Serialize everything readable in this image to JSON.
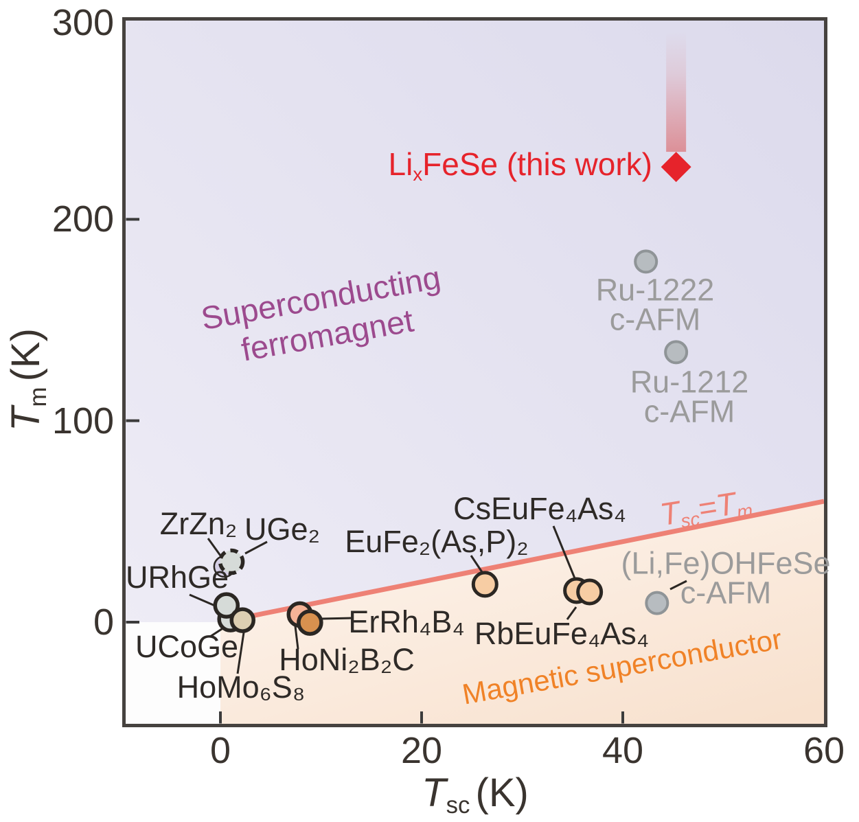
{
  "palette": {
    "lavender_bg_top": "#dcdaec",
    "lavender_bg_bottom": "#efedf6",
    "orange_bg_top": "#fdf5ee",
    "orange_bg_bottom": "#f8e1ce",
    "white_bg": "#fdfdfd",
    "border": "#46423f",
    "tick": "#3b3b3b",
    "red": "#e6232b",
    "band_red": "#d94848",
    "salmon_line": "#ee8175",
    "purple_text": "#9c4a8e",
    "orange_text": "#f08227",
    "gray_text": "#9b9b9b",
    "black_text": "#2e2a27",
    "axis_text": "#3a342f",
    "dark_stroke": "#2b2723",
    "circle_gray_fill": "#b7bcc0",
    "circle_gray_stroke": "#8f9497",
    "lightgray_fill": "#d6dbd8",
    "lavender_fill": "#d5cfe6",
    "tan_fill": "#ddcfb2",
    "salmon_fill": "#f5b397",
    "darkorange_fill": "#d8914f",
    "peach_fill": "#f7cda4"
  },
  "chart_data": {
    "type": "scatter",
    "title": "",
    "xlabel": "Tsc (K)",
    "ylabel": "Tm (K)",
    "xlim": [
      -10,
      60
    ],
    "ylim": [
      -52,
      300
    ],
    "xticks": [
      0,
      20,
      40,
      60
    ],
    "yticks": [
      0,
      100,
      200,
      300
    ],
    "x_axis": {
      "symbol": "T",
      "sub": "sc",
      "unit": "(K)"
    },
    "y_axis": {
      "symbol": "T",
      "sub": "m",
      "unit": "(K)"
    },
    "equality_line": {
      "label": "Tsc = Tm",
      "label_parts": {
        "t1": "T",
        "s1": "sc",
        "eq": "=",
        "t2": "T",
        "s2": "m"
      },
      "x1": 1.3,
      "y1": 1.3,
      "x2": 60,
      "y2": 60
    },
    "regions": [
      {
        "name": "Superconducting ferromagnet",
        "line1": "Superconducting",
        "line2": "ferromagnet"
      },
      {
        "name": "Magnetic superconductor",
        "line1": "Magnetic superconductor"
      }
    ],
    "points": [
      {
        "id": "lixfese",
        "label": "LixFeSe (this work)",
        "label_parts": {
          "pre": "Li",
          "sub": "x",
          "post": "FeSe (this work)"
        },
        "tsc": 45.3,
        "tm": 226,
        "marker": "diamond",
        "fill": "red"
      },
      {
        "id": "ru1222",
        "label": "Ru-1222",
        "label2": "c-AFM",
        "tsc": 42.3,
        "tm": 179,
        "marker": "circle",
        "fill": "gray"
      },
      {
        "id": "ru1212",
        "label": "Ru-1212",
        "label2": "c-AFM",
        "tsc": 45.3,
        "tm": 134,
        "marker": "circle",
        "fill": "gray"
      },
      {
        "id": "lifeohfese",
        "label": "(Li,Fe)OHFeSe",
        "label2": "c-AFM",
        "tsc": 43.4,
        "tm": 9.5,
        "marker": "circle",
        "fill": "gray"
      },
      {
        "id": "zrzn2",
        "label": "ZrZn₂",
        "tsc": 1.1,
        "tm": 30,
        "marker": "circle-dashed",
        "fill": "lightgray"
      },
      {
        "id": "uge2",
        "label": "UGe₂",
        "tsc": 0.4,
        "tm": 27.6,
        "marker": "circle",
        "fill": "lavender"
      },
      {
        "id": "urhge",
        "label": "URhGe",
        "tsc": 0.6,
        "tm": 8.3,
        "marker": "circle",
        "fill": "lightgray"
      },
      {
        "id": "ucoge",
        "label": "UCoGe",
        "tsc": 1.0,
        "tm": 1.5,
        "marker": "circle",
        "fill": "lightgray"
      },
      {
        "id": "homo6s8",
        "label": "HoMo₆S₈",
        "tsc": 2.2,
        "tm": 1.0,
        "marker": "circle",
        "fill": "tan"
      },
      {
        "id": "honi2b2c",
        "label": "HoNi₂B₂C",
        "tsc": 7.9,
        "tm": 3.8,
        "marker": "circle",
        "fill": "salmon"
      },
      {
        "id": "errh4b4",
        "label": "ErRh₄B₄",
        "tsc": 8.9,
        "tm": -0.2,
        "marker": "circle",
        "fill": "darkorange"
      },
      {
        "id": "eufe2asp2",
        "label": "EuFe₂(As,P)₂",
        "tsc": 26.3,
        "tm": 18.8,
        "marker": "circle",
        "fill": "peach"
      },
      {
        "id": "cseufe4as4",
        "label": "CsEuFe₄As₄",
        "tsc": 35.4,
        "tm": 15.7,
        "marker": "circle",
        "fill": "peach"
      },
      {
        "id": "rbeufe4as4",
        "label": "RbEuFe₄As₄",
        "tsc": 36.7,
        "tm": 15.0,
        "marker": "circle",
        "fill": "peach"
      }
    ]
  }
}
